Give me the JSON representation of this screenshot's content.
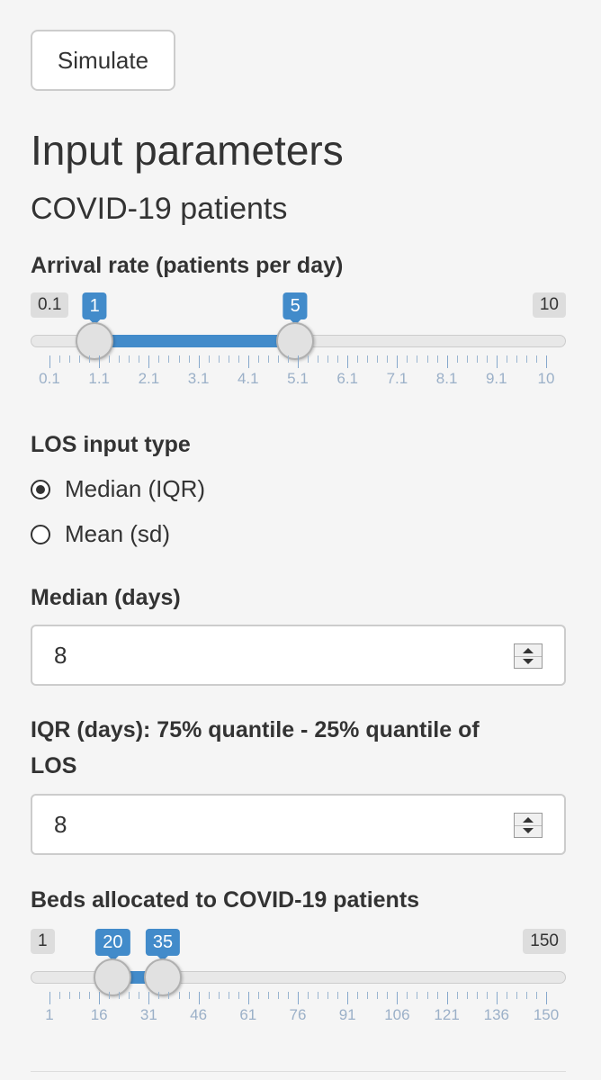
{
  "simulate_button": "Simulate",
  "section_title": "Input parameters",
  "subsection_title": "COVID-19 patients",
  "arrival_slider": {
    "label": "Arrival rate (patients per day)",
    "min_label": "0.1",
    "max_label": "10",
    "min": 0.1,
    "max": 10,
    "value_low": 1,
    "value_high": 5,
    "value_low_label": "1",
    "value_high_label": "5",
    "tick_labels": [
      "0.1",
      "1.1",
      "2.1",
      "3.1",
      "4.1",
      "5.1",
      "6.1",
      "7.1",
      "8.1",
      "9.1",
      "10"
    ]
  },
  "los_type": {
    "label": "LOS input type",
    "options": [
      {
        "label": "Median (IQR)",
        "checked": true
      },
      {
        "label": "Mean (sd)",
        "checked": false
      }
    ]
  },
  "median": {
    "label": "Median (days)",
    "value": "8"
  },
  "iqr": {
    "label_line1": "IQR (days): 75% quantile - 25% quantile of",
    "label_line2": "LOS",
    "value": "8"
  },
  "beds_slider": {
    "label": "Beds allocated to COVID-19 patients",
    "min_label": "1",
    "max_label": "150",
    "min": 1,
    "max": 150,
    "value_low": 20,
    "value_high": 35,
    "value_low_label": "20",
    "value_high_label": "35",
    "tick_labels": [
      "1",
      "16",
      "31",
      "46",
      "61",
      "76",
      "91",
      "106",
      "121",
      "136",
      "150"
    ]
  },
  "colors": {
    "accent": "#428bca",
    "background": "#f5f5f5"
  }
}
